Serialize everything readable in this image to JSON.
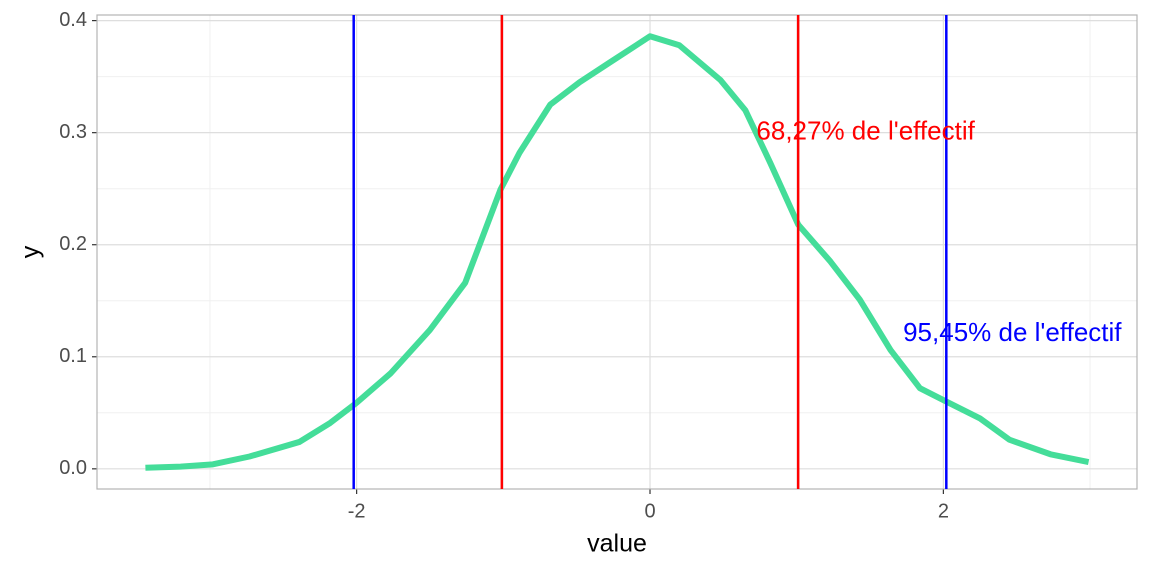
{
  "chart_data": {
    "type": "line",
    "xlabel": "value",
    "ylabel": "y",
    "x": [
      -3.44,
      -3.2,
      -2.98,
      -2.73,
      -2.39,
      -2.18,
      -2.0,
      -1.77,
      -1.5,
      -1.26,
      -1.02,
      -0.89,
      -0.68,
      -0.48,
      -0.27,
      0.0,
      0.2,
      0.48,
      0.65,
      0.82,
      1.01,
      1.23,
      1.43,
      1.64,
      1.84,
      2.02,
      2.25,
      2.45,
      2.73,
      2.99
    ],
    "values": [
      0.001,
      0.002,
      0.004,
      0.011,
      0.024,
      0.041,
      0.059,
      0.085,
      0.124,
      0.166,
      0.249,
      0.282,
      0.325,
      0.345,
      0.363,
      0.386,
      0.378,
      0.347,
      0.32,
      0.273,
      0.218,
      0.185,
      0.151,
      0.106,
      0.072,
      0.06,
      0.045,
      0.026,
      0.013,
      0.006
    ],
    "color": "#44dd99",
    "vlines": [
      {
        "value": -1.01,
        "color": "#ff0000"
      },
      {
        "value": 1.01,
        "color": "#ff0000"
      },
      {
        "value": -2.02,
        "color": "#0000ff"
      },
      {
        "value": 2.02,
        "color": "#0000ff"
      }
    ],
    "annotations": [
      {
        "text": "68,27% de l'effectif",
        "x": 1.47,
        "y": 0.3,
        "color": "#ff0000"
      },
      {
        "text": "95,45% de l'effectif",
        "x": 2.47,
        "y": 0.12,
        "color": "#0000ff"
      }
    ],
    "xlim": [
      -3.77,
      3.32
    ],
    "xticks": [
      -2,
      0,
      2
    ],
    "ylim": [
      -0.018,
      0.405
    ],
    "yticks": [
      {
        "value": 0,
        "label": "0.0"
      },
      0.1,
      0.2,
      0.3,
      0.4
    ],
    "grid": true
  }
}
